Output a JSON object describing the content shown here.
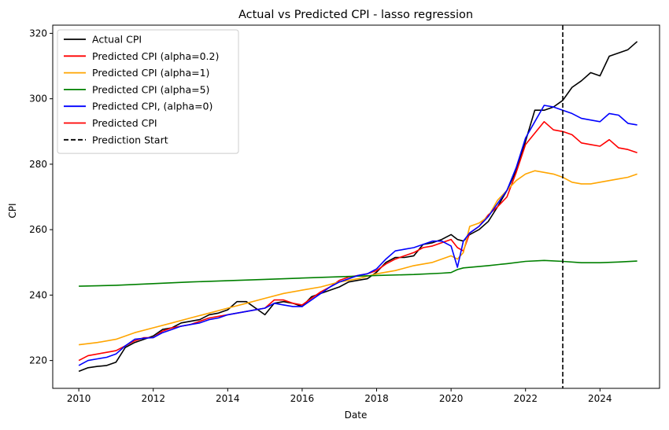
{
  "chart_data": {
    "type": "line",
    "title": "Actual vs Predicted CPI - lasso regression",
    "xlabel": "Date",
    "ylabel": "CPI",
    "xlim": [
      2009.3,
      2025.6
    ],
    "ylim": [
      211.5,
      322.5
    ],
    "xticks": [
      2010,
      2012,
      2014,
      2016,
      2018,
      2020,
      2022,
      2024
    ],
    "yticks": [
      220,
      240,
      260,
      280,
      300,
      320
    ],
    "grid": false,
    "legend_position": "upper-left",
    "prediction_start": 2023.0,
    "series": [
      {
        "name": "Actual CPI",
        "color": "#000000",
        "dash": "none",
        "x": [
          2010.0,
          2010.25,
          2010.5,
          2010.75,
          2011.0,
          2011.25,
          2011.5,
          2011.75,
          2012.0,
          2012.25,
          2012.5,
          2012.75,
          2013.0,
          2013.25,
          2013.5,
          2013.75,
          2014.0,
          2014.25,
          2014.5,
          2014.75,
          2015.0,
          2015.25,
          2015.5,
          2015.75,
          2016.0,
          2016.25,
          2016.5,
          2016.75,
          2017.0,
          2017.25,
          2017.5,
          2017.75,
          2018.0,
          2018.25,
          2018.5,
          2018.75,
          2019.0,
          2019.25,
          2019.5,
          2019.75,
          2020.0,
          2020.17,
          2020.33,
          2020.5,
          2020.75,
          2021.0,
          2021.25,
          2021.5,
          2021.75,
          2022.0,
          2022.25,
          2022.5,
          2022.75,
          2023.0,
          2023.25,
          2023.5,
          2023.75,
          2024.0,
          2024.25,
          2024.5,
          2024.75,
          2025.0
        ],
        "y": [
          216.7,
          217.8,
          218.2,
          218.5,
          219.5,
          224.0,
          225.5,
          226.5,
          227.5,
          229.5,
          230.0,
          231.5,
          232.0,
          232.5,
          234.0,
          234.5,
          235.5,
          238.0,
          238.0,
          236.0,
          234.0,
          237.5,
          238.0,
          237.5,
          236.5,
          239.5,
          240.5,
          241.5,
          242.5,
          244.0,
          244.5,
          245.0,
          247.0,
          250.0,
          251.5,
          251.5,
          252.0,
          255.5,
          256.0,
          257.0,
          258.5,
          257.0,
          256.5,
          258.5,
          260.0,
          262.5,
          267.0,
          272.0,
          278.0,
          287.0,
          296.5,
          296.5,
          297.5,
          299.5,
          303.5,
          305.5,
          308.0,
          307.0,
          313.0,
          314.0,
          315.0,
          317.5
        ]
      },
      {
        "name": "Predicted CPI (alpha=0.2)",
        "color": "#ff0000",
        "dash": "none",
        "x": [
          2010.0,
          2010.25,
          2010.5,
          2010.75,
          2011.0,
          2011.25,
          2011.5,
          2011.75,
          2012.0,
          2012.25,
          2012.5,
          2012.75,
          2013.0,
          2013.25,
          2013.5,
          2013.75,
          2014.0,
          2014.25,
          2014.5,
          2014.75,
          2015.0,
          2015.25,
          2015.5,
          2015.75,
          2016.0,
          2016.25,
          2016.5,
          2016.75,
          2017.0,
          2017.25,
          2017.5,
          2017.75,
          2018.0,
          2018.25,
          2018.5,
          2018.75,
          2019.0,
          2019.25,
          2019.5,
          2019.75,
          2020.0,
          2020.17,
          2020.33,
          2020.5,
          2020.75,
          2021.0,
          2021.25,
          2021.5,
          2021.75,
          2022.0,
          2022.25,
          2022.5,
          2022.75,
          2023.0,
          2023.25,
          2023.5,
          2023.75,
          2024.0,
          2024.25,
          2024.5,
          2024.75,
          2025.0
        ],
        "y": [
          220.0,
          221.5,
          222.0,
          222.5,
          223.0,
          224.5,
          226.0,
          227.0,
          227.0,
          229.0,
          230.0,
          230.5,
          231.0,
          232.0,
          233.0,
          233.5,
          234.0,
          234.5,
          235.0,
          235.5,
          236.0,
          238.5,
          238.5,
          237.5,
          237.0,
          239.0,
          241.0,
          242.5,
          244.5,
          245.5,
          246.0,
          246.5,
          247.5,
          249.5,
          251.0,
          252.0,
          253.0,
          254.5,
          255.0,
          256.0,
          257.0,
          254.5,
          253.5,
          259.0,
          261.0,
          264.5,
          267.0,
          270.0,
          277.5,
          286.0,
          289.5,
          293.0,
          290.5,
          290.0,
          289.0,
          286.5,
          286.0,
          285.5,
          287.5,
          285.0,
          284.5,
          283.5
        ]
      },
      {
        "name": "Predicted CPI (alpha=1)",
        "color": "#ffa500",
        "dash": "none",
        "x": [
          2010.0,
          2010.5,
          2011.0,
          2011.5,
          2012.0,
          2012.5,
          2013.0,
          2013.5,
          2014.0,
          2014.5,
          2015.0,
          2015.5,
          2016.0,
          2016.5,
          2017.0,
          2017.5,
          2018.0,
          2018.5,
          2019.0,
          2019.5,
          2020.0,
          2020.17,
          2020.33,
          2020.5,
          2020.75,
          2021.0,
          2021.25,
          2021.5,
          2021.75,
          2022.0,
          2022.25,
          2022.5,
          2022.75,
          2023.0,
          2023.25,
          2023.5,
          2023.75,
          2024.0,
          2024.25,
          2024.5,
          2024.75,
          2025.0
        ],
        "y": [
          224.8,
          225.5,
          226.5,
          228.5,
          230.0,
          231.5,
          233.0,
          234.5,
          236.0,
          237.5,
          239.0,
          240.5,
          241.5,
          242.5,
          244.0,
          245.0,
          246.5,
          247.5,
          249.0,
          250.0,
          252.0,
          251.0,
          253.0,
          261.0,
          262.0,
          264.0,
          269.0,
          272.0,
          275.0,
          277.0,
          278.0,
          277.5,
          277.0,
          276.0,
          274.5,
          274.0,
          274.0,
          274.5,
          275.0,
          275.5,
          276.0,
          277.0
        ]
      },
      {
        "name": "Predicted CPI (alpha=5)",
        "color": "#008000",
        "dash": "none",
        "x": [
          2010.0,
          2011.0,
          2012.0,
          2013.0,
          2014.0,
          2015.0,
          2016.0,
          2017.0,
          2018.0,
          2019.0,
          2019.75,
          2020.0,
          2020.17,
          2020.33,
          2021.0,
          2021.5,
          2022.0,
          2022.5,
          2023.0,
          2023.5,
          2024.0,
          2024.5,
          2025.0
        ],
        "y": [
          242.7,
          243.0,
          243.5,
          244.0,
          244.4,
          244.8,
          245.2,
          245.6,
          246.0,
          246.3,
          246.7,
          246.9,
          247.8,
          248.3,
          249.0,
          249.6,
          250.3,
          250.6,
          250.3,
          249.9,
          249.9,
          250.1,
          250.4
        ]
      },
      {
        "name": "Predicted CPI, (alpha=0)",
        "color": "#0000ff",
        "dash": "none",
        "x": [
          2010.0,
          2010.25,
          2010.5,
          2010.75,
          2011.0,
          2011.25,
          2011.5,
          2011.75,
          2012.0,
          2012.25,
          2012.5,
          2012.75,
          2013.0,
          2013.25,
          2013.5,
          2013.75,
          2014.0,
          2014.25,
          2014.5,
          2014.75,
          2015.0,
          2015.25,
          2015.5,
          2015.75,
          2016.0,
          2016.25,
          2016.5,
          2016.75,
          2017.0,
          2017.25,
          2017.5,
          2017.75,
          2018.0,
          2018.25,
          2018.5,
          2018.75,
          2019.0,
          2019.25,
          2019.5,
          2019.75,
          2020.0,
          2020.17,
          2020.33,
          2020.5,
          2020.75,
          2021.0,
          2021.25,
          2021.5,
          2021.75,
          2022.0,
          2022.25,
          2022.5,
          2022.75,
          2023.0,
          2023.25,
          2023.5,
          2023.75,
          2024.0,
          2024.25,
          2024.5,
          2024.75,
          2025.0
        ],
        "y": [
          218.5,
          220.0,
          220.5,
          221.0,
          222.0,
          224.5,
          226.5,
          226.8,
          227.0,
          228.5,
          229.5,
          230.5,
          231.0,
          231.5,
          232.5,
          233.0,
          234.0,
          234.5,
          235.0,
          235.5,
          236.0,
          237.5,
          237.0,
          236.5,
          236.5,
          238.5,
          240.5,
          242.5,
          244.0,
          245.0,
          246.0,
          246.5,
          248.0,
          251.0,
          253.5,
          254.0,
          254.5,
          255.5,
          256.5,
          256.5,
          255.0,
          248.5,
          256.5,
          259.0,
          261.0,
          264.0,
          268.0,
          272.0,
          279.0,
          288.0,
          293.0,
          298.0,
          297.5,
          296.5,
          295.5,
          294.0,
          293.5,
          293.0,
          295.5,
          295.0,
          292.5,
          292.0
        ]
      },
      {
        "name": "Predicted CPI",
        "color": "#ff0000",
        "dash": "none",
        "x": [],
        "y": []
      },
      {
        "name": "Prediction Start",
        "color": "#000000",
        "dash": "6,3",
        "x": [],
        "y": []
      }
    ]
  }
}
